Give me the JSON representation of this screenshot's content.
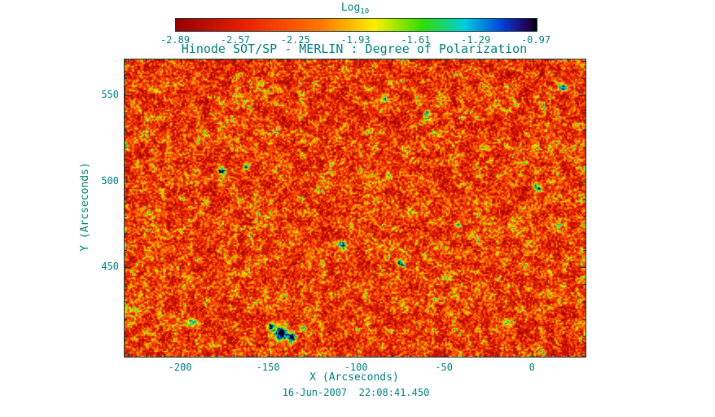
{
  "colors": {
    "text": "#008080",
    "frame": "#0d3b3b",
    "background": "#ffffff"
  },
  "colorbar": {
    "label": "Log",
    "label_sub": "10",
    "tick_labels": [
      "-2.89",
      "-2.57",
      "-2.25",
      "-1.93",
      "-1.61",
      "-1.29",
      "-0.97"
    ]
  },
  "title": "Hinode SOT/SP - MERLIN : Degree of Polarization",
  "x_axis": {
    "label": "X (Arcseconds)",
    "tick_labels": [
      "-200",
      "-150",
      "-100",
      "-50",
      "0"
    ]
  },
  "y_axis": {
    "label": "Y (Arcseconds)",
    "tick_labels": [
      "450",
      "500",
      "550"
    ]
  },
  "footer": "16-Jun-2007  22:08:41.450",
  "chart_data": {
    "type": "heatmap",
    "title": "Hinode SOT/SP - MERLIN : Degree of Polarization",
    "xlabel": "X (Arcseconds)",
    "ylabel": "Y (Arcseconds)",
    "xlim": [
      -232,
      30
    ],
    "ylim": [
      398,
      571
    ],
    "x_ticks": [
      -200,
      -150,
      -100,
      -50,
      0
    ],
    "y_ticks": [
      450,
      500,
      550
    ],
    "minor_tick_step": 10,
    "value_label": "Log10 Degree of Polarization",
    "value_range": [
      -2.89,
      -0.97
    ],
    "colorbar_ticks": [
      -2.89,
      -2.57,
      -2.25,
      -1.93,
      -1.61,
      -1.29,
      -0.97
    ],
    "colormap_stops": [
      {
        "t": 0.0,
        "color": "#990000"
      },
      {
        "t": 0.2,
        "color": "#ee2200"
      },
      {
        "t": 0.4,
        "color": "#ff7700"
      },
      {
        "t": 0.55,
        "color": "#ffee00"
      },
      {
        "t": 0.68,
        "color": "#33dd00"
      },
      {
        "t": 0.8,
        "color": "#00ccdd"
      },
      {
        "t": 0.9,
        "color": "#0044dd"
      },
      {
        "t": 0.97,
        "color": "#250060"
      },
      {
        "t": 1.0,
        "color": "#000000"
      }
    ],
    "field_statistics": "Quiet-Sun map: dominant background log10(p) between -2.9 and -2.4 (red/orange), dense granular speckle of -2.2 to -1.9 (yellow/green), sparse cyan/blue network patches near -1.6 to -1.3, one strong dark blue/black flux concentration near (-143, 412).",
    "noise": {
      "seed": 1337,
      "fine_cell": 2,
      "coarse_cell": 9,
      "weights": [
        0.52,
        0.3,
        0.18
      ],
      "skew": 2.0
    },
    "notable_features": [
      {
        "x": -143,
        "y": 412,
        "sigma": 2.8,
        "amplitude": 0.95
      },
      {
        "x": -137,
        "y": 409,
        "sigma": 1.8,
        "amplitude": 0.85
      },
      {
        "x": -149,
        "y": 416,
        "sigma": 1.6,
        "amplitude": 0.7
      },
      {
        "x": -131,
        "y": 415,
        "sigma": 1.4,
        "amplitude": 0.6
      },
      {
        "x": 17,
        "y": 555,
        "sigma": 1.6,
        "amplitude": 0.75
      },
      {
        "x": 3,
        "y": 496,
        "sigma": 1.5,
        "amplitude": 0.7
      },
      {
        "x": -177,
        "y": 506,
        "sigma": 1.6,
        "amplitude": 0.68
      },
      {
        "x": -76,
        "y": 453,
        "sigma": 1.5,
        "amplitude": 0.62
      },
      {
        "x": -43,
        "y": 475,
        "sigma": 1.4,
        "amplitude": 0.6
      },
      {
        "x": -15,
        "y": 418,
        "sigma": 1.5,
        "amplitude": 0.6
      },
      {
        "x": -108,
        "y": 463,
        "sigma": 1.7,
        "amplitude": 0.58
      },
      {
        "x": -85,
        "y": 548,
        "sigma": 1.5,
        "amplitude": 0.6
      },
      {
        "x": -194,
        "y": 418,
        "sigma": 1.8,
        "amplitude": 0.55
      },
      {
        "x": -163,
        "y": 509,
        "sigma": 1.4,
        "amplitude": 0.6
      },
      {
        "x": -60,
        "y": 540,
        "sigma": 1.3,
        "amplitude": 0.55
      }
    ]
  }
}
